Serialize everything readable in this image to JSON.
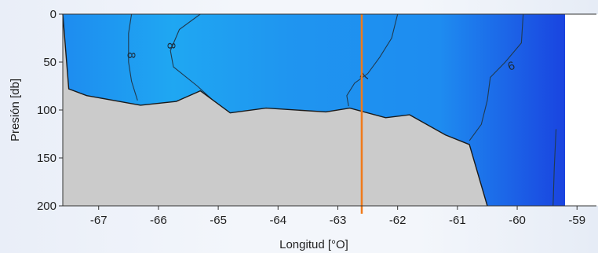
{
  "chart_data": {
    "type": "contour",
    "xlabel": "Longitud [°O]",
    "ylabel": "Presión [db]",
    "xlim": [
      -67.6,
      -59.2
    ],
    "ylim": [
      200,
      0
    ],
    "xticks": [
      -67,
      -66,
      -65,
      -64,
      -63,
      -62,
      -61,
      -60,
      -59
    ],
    "xtick_labels": [
      "-67",
      "-66",
      "-65",
      "-64",
      "-63",
      "-62",
      "-61",
      "-60",
      "-59"
    ],
    "yticks": [
      0,
      50,
      100,
      150,
      200
    ],
    "ytick_labels": [
      "0",
      "50",
      "100",
      "150",
      "200"
    ],
    "colors": {
      "field_light": "#1fa7f2",
      "field_mid": "#1e8cf0",
      "field_dark": "#1a44e0",
      "seabed": "#cbcbcb",
      "marker_line": "#f07a1a",
      "contour": "#203a4f"
    },
    "marker_x": -62.6,
    "bathymetry": [
      {
        "x": -67.6,
        "y": 0
      },
      {
        "x": -67.5,
        "y": 78
      },
      {
        "x": -67.2,
        "y": 85
      },
      {
        "x": -66.3,
        "y": 95
      },
      {
        "x": -65.7,
        "y": 91
      },
      {
        "x": -65.3,
        "y": 80
      },
      {
        "x": -64.8,
        "y": 103
      },
      {
        "x": -64.2,
        "y": 98
      },
      {
        "x": -63.2,
        "y": 102
      },
      {
        "x": -62.8,
        "y": 98
      },
      {
        "x": -62.2,
        "y": 108
      },
      {
        "x": -61.8,
        "y": 105
      },
      {
        "x": -61.2,
        "y": 126
      },
      {
        "x": -60.8,
        "y": 136
      },
      {
        "x": -60.5,
        "y": 200
      },
      {
        "x": -59.2,
        "y": 200
      },
      {
        "x": -59.2,
        "y": 0
      }
    ],
    "contours": [
      {
        "level": "8",
        "points": [
          {
            "x": -66.45,
            "y": 0
          },
          {
            "x": -66.5,
            "y": 20
          },
          {
            "x": -66.5,
            "y": 50
          },
          {
            "x": -66.45,
            "y": 70
          },
          {
            "x": -66.35,
            "y": 90
          }
        ],
        "label_at": {
          "x": -66.45,
          "y": 43
        }
      },
      {
        "level": "8",
        "points": [
          {
            "x": -65.3,
            "y": 0
          },
          {
            "x": -65.65,
            "y": 16
          },
          {
            "x": -65.8,
            "y": 38
          },
          {
            "x": -65.75,
            "y": 55
          },
          {
            "x": -65.35,
            "y": 75
          },
          {
            "x": -65.05,
            "y": 92
          }
        ],
        "label_at": {
          "x": -65.78,
          "y": 33
        }
      },
      {
        "level": "7",
        "points": [
          {
            "x": -62.0,
            "y": 0
          },
          {
            "x": -62.1,
            "y": 25
          },
          {
            "x": -62.3,
            "y": 45
          },
          {
            "x": -62.5,
            "y": 62
          },
          {
            "x": -62.72,
            "y": 72
          },
          {
            "x": -62.85,
            "y": 85
          },
          {
            "x": -62.82,
            "y": 96
          }
        ],
        "label_at": {
          "x": -62.55,
          "y": 65
        }
      },
      {
        "level": "6",
        "points": [
          {
            "x": -59.9,
            "y": 0
          },
          {
            "x": -59.93,
            "y": 30
          },
          {
            "x": -60.2,
            "y": 50
          },
          {
            "x": -60.45,
            "y": 66
          },
          {
            "x": -60.5,
            "y": 90
          },
          {
            "x": -60.6,
            "y": 115
          },
          {
            "x": -60.8,
            "y": 132
          }
        ],
        "label_at": {
          "x": -60.1,
          "y": 54
        }
      },
      {
        "level": "",
        "points": [
          {
            "x": -59.35,
            "y": 120
          },
          {
            "x": -59.38,
            "y": 160
          },
          {
            "x": -59.4,
            "y": 200
          }
        ]
      }
    ]
  }
}
